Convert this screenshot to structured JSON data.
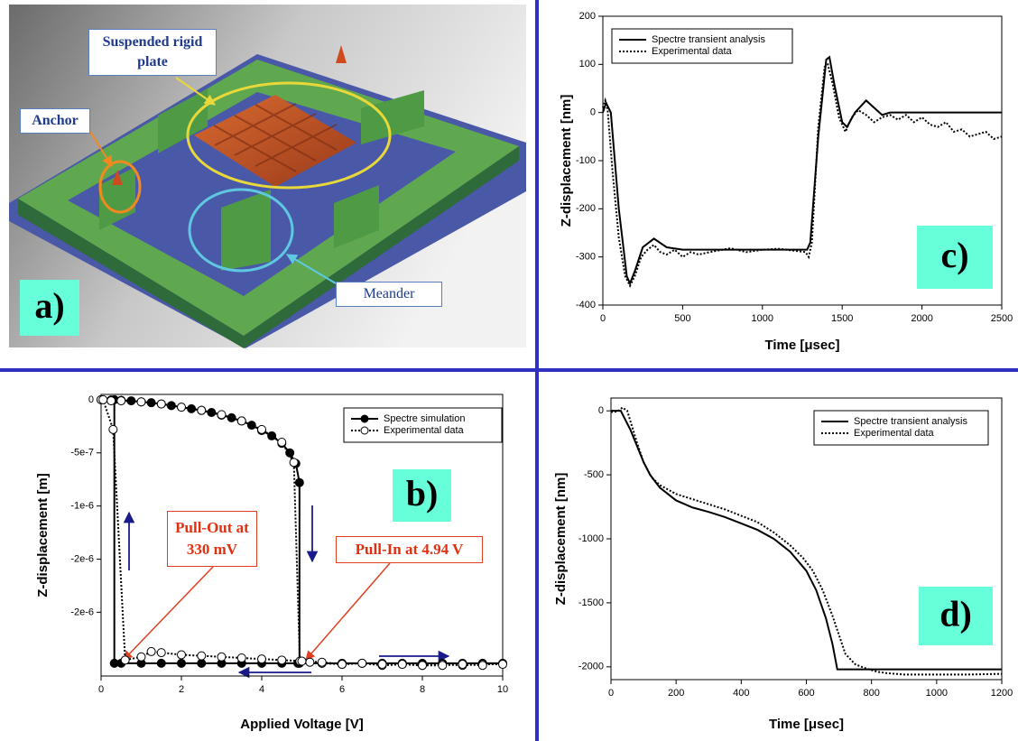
{
  "image_panel": {
    "panel_label": "a)",
    "annotations": [
      "Suspended rigid plate",
      "Anchor",
      "Meander"
    ]
  },
  "chart_data": [
    {
      "type": "line",
      "panel_label": "c)",
      "x_label": "Time [μsec]",
      "y_label": "Z-displacement [nm]",
      "xlim": [
        0,
        2500
      ],
      "xticks": [
        0,
        500,
        1000,
        1500,
        2000,
        2500
      ],
      "ylim": [
        -400,
        200
      ],
      "yticks": [
        -400,
        -300,
        -200,
        -100,
        0,
        100,
        200
      ],
      "legend": "upper left",
      "series": [
        {
          "name": "Spectre transient analysis",
          "color": "#000000",
          "line_style": "solid",
          "marker": "none",
          "x": [
            0,
            20,
            50,
            100,
            150,
            170,
            200,
            250,
            320,
            400,
            500,
            700,
            1000,
            1280,
            1300,
            1350,
            1400,
            1420,
            1450,
            1500,
            1530,
            1580,
            1650,
            1700,
            1750,
            1800,
            2000,
            2500
          ],
          "values": [
            0,
            20,
            0,
            -200,
            -340,
            -355,
            -330,
            -280,
            -262,
            -280,
            -285,
            -285,
            -285,
            -285,
            -270,
            -50,
            110,
            115,
            60,
            -20,
            -30,
            0,
            25,
            10,
            -5,
            0,
            0,
            0
          ]
        },
        {
          "name": "Experimental data",
          "color": "#000000",
          "line_style": "dotted",
          "marker": "none",
          "x": [
            0,
            15,
            30,
            60,
            100,
            140,
            170,
            200,
            240,
            280,
            320,
            360,
            400,
            450,
            500,
            550,
            600,
            700,
            800,
            900,
            1000,
            1100,
            1200,
            1270,
            1290,
            1310,
            1350,
            1390,
            1410,
            1440,
            1480,
            1520,
            1560,
            1600,
            1650,
            1700,
            1750,
            1800,
            1850,
            1900,
            1950,
            2000,
            2050,
            2100,
            2150,
            2200,
            2250,
            2300,
            2350,
            2400,
            2450,
            2500
          ],
          "values": [
            10,
            25,
            5,
            -120,
            -260,
            -340,
            -360,
            -340,
            -300,
            -285,
            -275,
            -290,
            -295,
            -285,
            -300,
            -290,
            -295,
            -288,
            -282,
            -290,
            -285,
            -283,
            -287,
            -290,
            -300,
            -270,
            -30,
            95,
            100,
            60,
            -10,
            -40,
            -10,
            5,
            -5,
            -20,
            -10,
            -5,
            -15,
            -5,
            -20,
            -10,
            -25,
            -30,
            -20,
            -40,
            -35,
            -50,
            -45,
            -40,
            -55,
            -50
          ]
        }
      ]
    },
    {
      "type": "line",
      "panel_label": "b)",
      "x_label": "Applied Voltage [V]",
      "y_label": "Z-displacement [m]",
      "xlim": [
        0,
        10
      ],
      "xticks": [
        0,
        2,
        4,
        6,
        8,
        10
      ],
      "ylim": [
        -2.6e-06,
        5e-08
      ],
      "yticks": [
        0,
        -5e-07,
        {
          "value": -1e-06,
          "label": "-1e-6"
        },
        {
          "value": -1.5e-06,
          "label": "-2e-6"
        },
        {
          "value": -2e-06,
          "label": "-2e-6"
        }
      ],
      "legend": "upper right",
      "annotations": [
        "Pull-Out at 330 mV",
        "Pull-In at 4.94 V"
      ],
      "series": [
        {
          "name": "Spectre simulation",
          "color": "#000000",
          "line_style": "solid",
          "marker": "filled",
          "x": [
            4.9,
            4.5,
            4,
            3.5,
            3,
            2.5,
            2,
            1.5,
            1,
            0.5,
            0.33,
            0.33,
            0.33,
            0,
            0.25,
            0.5,
            0.75,
            1,
            1.25,
            1.5,
            1.75,
            2,
            2.25,
            2.5,
            2.75,
            3,
            3.25,
            3.5,
            3.75,
            4,
            4.25,
            4.5,
            4.7,
            4.85,
            4.94,
            4.94,
            5.5,
            6,
            6.5,
            7,
            7.5,
            8,
            8.5,
            9,
            9.5,
            10
          ],
          "values": [
            -2.48e-06,
            -2.48e-06,
            -2.48e-06,
            -2.48e-06,
            -2.48e-06,
            -2.48e-06,
            -2.48e-06,
            -2.48e-06,
            -2.48e-06,
            -2.48e-06,
            -2.48e-06,
            0,
            null,
            0,
            -2e-09,
            -5e-09,
            -1e-08,
            -2e-08,
            -2.8e-08,
            -4e-08,
            -5.5e-08,
            -7e-08,
            -8.5e-08,
            -1e-07,
            -1.2e-07,
            -1.45e-07,
            -1.7e-07,
            -2e-07,
            -2.4e-07,
            -2.9e-07,
            -3.4e-07,
            -4.1e-07,
            -5e-07,
            -6e-07,
            -7.8e-07,
            -2.48e-06,
            -2.48e-06,
            -2.48e-06,
            -2.48e-06,
            -2.48e-06,
            -2.48e-06,
            -2.48e-06,
            -2.48e-06,
            -2.48e-06,
            -2.48e-06,
            -2.48e-06
          ]
        },
        {
          "name": "Experimental data",
          "color": "#000000",
          "line_style": "dotted",
          "marker": "open",
          "x": [
            0,
            0.25,
            0.5,
            1,
            1.5,
            2,
            2.5,
            3,
            3.5,
            4,
            4.5,
            4.8,
            4.95,
            5.2,
            5.5,
            6,
            6.5,
            7,
            7.5,
            8,
            8.5,
            9,
            9.5,
            10,
            10,
            9.5,
            9,
            8.5,
            8,
            7.5,
            7,
            6.5,
            6,
            5.5,
            5,
            4.5,
            4,
            3.5,
            3,
            2.5,
            2,
            1.5,
            1.25,
            1,
            0.6,
            0.3,
            0.05
          ],
          "values": [
            0,
            -1e-08,
            -1e-08,
            -2e-08,
            -4e-08,
            -7e-08,
            -1e-07,
            -1.4e-07,
            -2e-07,
            -2.8e-07,
            -4e-07,
            -5.9e-07,
            -2.46e-06,
            -2.47e-06,
            -2.48e-06,
            -2.49e-06,
            -2.48e-06,
            -2.5e-06,
            -2.49e-06,
            -2.5e-06,
            -2.49e-06,
            -2.5e-06,
            -2.49e-06,
            -2.49e-06,
            null,
            -2.5e-06,
            -2.49e-06,
            -2.5e-06,
            -2.5e-06,
            -2.49e-06,
            -2.49e-06,
            -2.48e-06,
            -2.49e-06,
            -2.47e-06,
            -2.46e-06,
            -2.45e-06,
            -2.44e-06,
            -2.43e-06,
            -2.42e-06,
            -2.41e-06,
            -2.4e-06,
            -2.38e-06,
            -2.37e-06,
            -2.42e-06,
            -2.45e-06,
            -2.8e-07,
            0
          ]
        }
      ]
    },
    {
      "type": "line",
      "panel_label": "d)",
      "x_label": "Time [μsec]",
      "y_label": "Z-displacement [nm]",
      "xlim": [
        0,
        1200
      ],
      "xticks": [
        0,
        200,
        400,
        600,
        800,
        1000,
        1200
      ],
      "ylim": [
        -2100,
        100
      ],
      "yticks": [
        -2000,
        -1500,
        -1000,
        -500,
        0
      ],
      "legend": "upper right",
      "series": [
        {
          "name": "Spectre transient analysis",
          "color": "#000000",
          "line_style": "solid",
          "marker": "none",
          "x": [
            0,
            30,
            60,
            100,
            120,
            150,
            200,
            250,
            300,
            350,
            400,
            450,
            500,
            550,
            600,
            630,
            660,
            680,
            695,
            700,
            800,
            1000,
            1200
          ],
          "values": [
            0,
            0,
            -150,
            -400,
            -500,
            -600,
            -700,
            -755,
            -790,
            -830,
            -880,
            -930,
            -1000,
            -1100,
            -1250,
            -1400,
            -1620,
            -1820,
            -2020,
            -2020,
            -2020,
            -2020,
            -2020
          ]
        },
        {
          "name": "Experimental data",
          "color": "#000000",
          "line_style": "dotted",
          "marker": "none",
          "x": [
            0,
            20,
            35,
            50,
            80,
            100,
            125,
            150,
            200,
            250,
            300,
            350,
            400,
            450,
            500,
            550,
            590,
            620,
            650,
            680,
            700,
            720,
            750,
            780,
            820,
            850,
            900,
            1000,
            1100,
            1200
          ],
          "values": [
            -10,
            -5,
            25,
            0,
            -250,
            -400,
            -520,
            -580,
            -650,
            -690,
            -730,
            -770,
            -820,
            -870,
            -950,
            -1050,
            -1150,
            -1250,
            -1400,
            -1600,
            -1750,
            -1900,
            -1980,
            -2010,
            -2040,
            -2050,
            -2060,
            -2060,
            -2060,
            -2055
          ]
        }
      ]
    }
  ]
}
